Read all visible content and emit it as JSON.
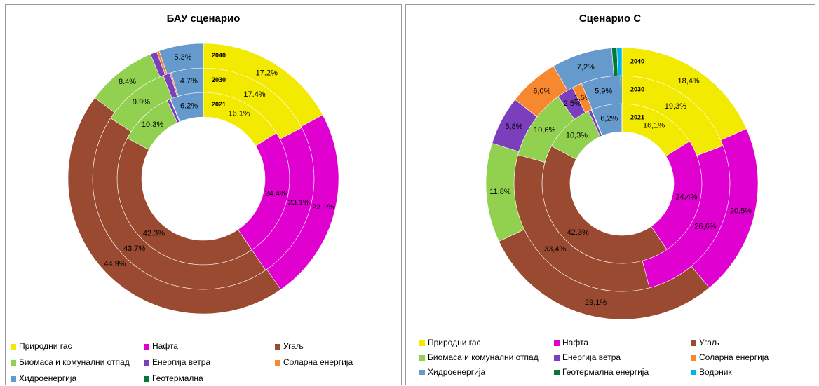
{
  "chart_data": [
    {
      "type": "donut",
      "title": "БАУ сценарио",
      "rings": [
        "2021",
        "2030",
        "2040"
      ],
      "series": [
        {
          "name": "Природни гас",
          "color": "#f2ea00",
          "values": [
            16.1,
            17.4,
            17.2
          ],
          "value_labels": [
            "16.1%",
            "17.4%",
            "17.2%"
          ]
        },
        {
          "name": "Нафта",
          "color": "#e000d0",
          "values": [
            24.4,
            23.1,
            23.1
          ],
          "value_labels": [
            "24.4%",
            "23.1%",
            "23.1%"
          ]
        },
        {
          "name": "Угаљ",
          "color": "#9b4a32",
          "values": [
            42.3,
            43.7,
            44.9
          ],
          "value_labels": [
            "42.3%",
            "43.7%",
            "44.9%"
          ]
        },
        {
          "name": "Биомаса и комунални отпад",
          "color": "#92d050",
          "values": [
            10.3,
            9.9,
            8.4
          ],
          "value_labels": [
            "10.3%",
            "9.9%",
            "8.4%"
          ]
        },
        {
          "name": "Енергија ветра",
          "color": "#7b3fbe",
          "values": [
            0.6,
            1.0,
            0.8
          ],
          "value_labels": [
            null,
            null,
            null
          ]
        },
        {
          "name": "Соларна енергија",
          "color": "#f7882f",
          "values": [
            0.1,
            0.2,
            0.3
          ],
          "value_labels": [
            null,
            null,
            null
          ]
        },
        {
          "name": "Хидроенергија",
          "color": "#6699cc",
          "values": [
            6.2,
            4.7,
            5.3
          ],
          "value_labels": [
            "6.2%",
            "4.7%",
            "5.3%"
          ]
        },
        {
          "name": "Геотермална",
          "color": "#007a33",
          "values": [
            0,
            0,
            0
          ],
          "value_labels": [
            null,
            null,
            null
          ]
        }
      ]
    },
    {
      "type": "donut",
      "title": "Сценарио C",
      "rings": [
        "2021",
        "2030",
        "2040"
      ],
      "series": [
        {
          "name": "Природни гас",
          "color": "#f2ea00",
          "values": [
            16.1,
            19.3,
            18.4
          ],
          "value_labels": [
            "16,1%",
            "19,3%",
            "18,4%"
          ]
        },
        {
          "name": "Нафта",
          "color": "#e000d0",
          "values": [
            24.4,
            26.6,
            20.5
          ],
          "value_labels": [
            "24,4%",
            "26,6%",
            "20,5%"
          ]
        },
        {
          "name": "Угаљ",
          "color": "#9b4a32",
          "values": [
            42.3,
            33.4,
            29.1
          ],
          "value_labels": [
            "42,3%",
            "33,4%",
            "29,1%"
          ]
        },
        {
          "name": "Биомаса и комунални отпад",
          "color": "#92d050",
          "values": [
            10.3,
            10.6,
            11.8
          ],
          "value_labels": [
            "10,3%",
            "10,6%",
            "11,8%"
          ]
        },
        {
          "name": "Енергија ветра",
          "color": "#7b3fbe",
          "values": [
            0.6,
            2.5,
            5.8
          ],
          "value_labels": [
            null,
            "2,5%",
            "5,8%"
          ]
        },
        {
          "name": "Соларна енергија",
          "color": "#f7882f",
          "values": [
            0.1,
            1.5,
            6.0
          ],
          "value_labels": [
            null,
            "1,5%",
            "6,0%"
          ]
        },
        {
          "name": "Хидроенергија",
          "color": "#6699cc",
          "values": [
            6.2,
            5.9,
            7.2
          ],
          "value_labels": [
            "6,2%",
            "5,9%",
            "7,2%"
          ]
        },
        {
          "name": "Геотермална енергија",
          "color": "#007a33",
          "values": [
            0,
            0.2,
            0.6
          ],
          "value_labels": [
            null,
            null,
            null
          ]
        },
        {
          "name": "Водоник",
          "color": "#00b0f0",
          "values": [
            0,
            0,
            0.6
          ],
          "value_labels": [
            null,
            null,
            null
          ]
        }
      ]
    }
  ]
}
